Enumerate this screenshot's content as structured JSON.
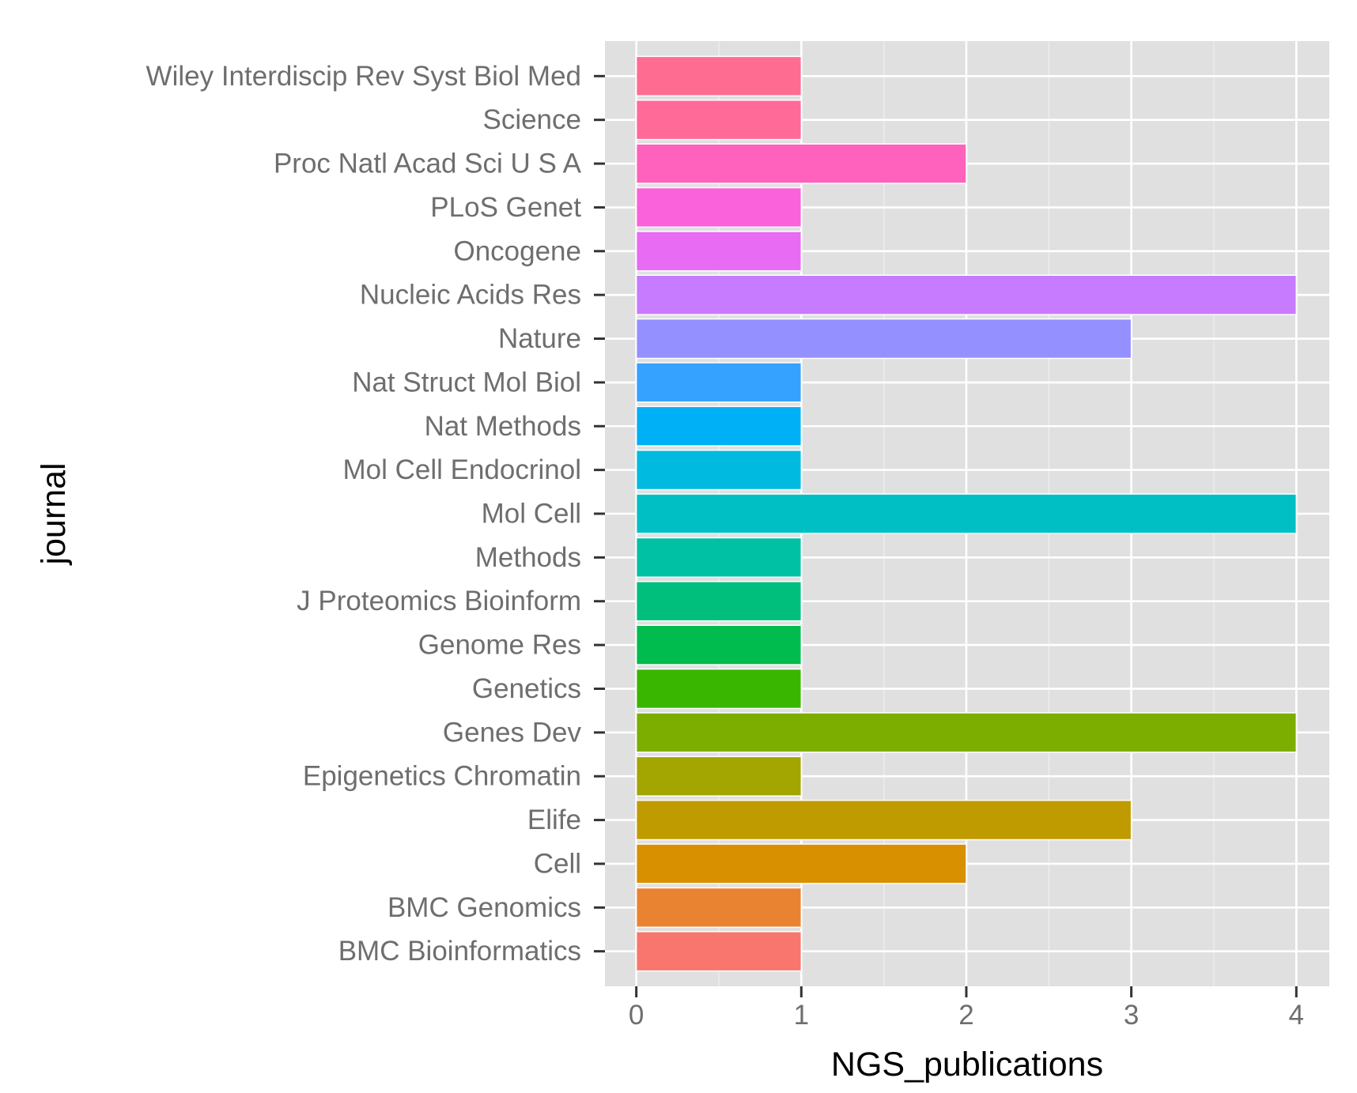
{
  "chart_data": {
    "type": "bar",
    "orientation": "horizontal",
    "xlabel": "NGS_publications",
    "ylabel": "journal",
    "xlim": [
      -0.19,
      4.2
    ],
    "x_ticks": [
      0,
      1,
      2,
      3,
      4
    ],
    "grid": true,
    "legend": "none",
    "categories": [
      "BMC Bioinformatics",
      "BMC Genomics",
      "Cell",
      "Elife",
      "Epigenetics Chromatin",
      "Genes Dev",
      "Genetics",
      "Genome Res",
      "J Proteomics Bioinform",
      "Methods",
      "Mol Cell",
      "Mol Cell Endocrinol",
      "Nat Methods",
      "Nat Struct Mol Biol",
      "Nature",
      "Nucleic Acids Res",
      "Oncogene",
      "PLoS Genet",
      "Proc Natl Acad Sci U S A",
      "Science",
      "Wiley Interdiscip Rev Syst Biol Med"
    ],
    "values": [
      1,
      1,
      2,
      3,
      1,
      4,
      1,
      1,
      1,
      1,
      4,
      1,
      1,
      1,
      3,
      4,
      1,
      1,
      2,
      1,
      1
    ],
    "colors": [
      "#F8766D",
      "#EA8331",
      "#D89000",
      "#C09B00",
      "#A3A500",
      "#7CAE00",
      "#39B600",
      "#00BB4E",
      "#00BF7D",
      "#00C1A3",
      "#00BFC4",
      "#00BAE0",
      "#00B0F6",
      "#35A2FF",
      "#9590FF",
      "#C77CFF",
      "#E76BF3",
      "#FA62DB",
      "#FF62BC",
      "#FF6A98",
      "#FF6C91"
    ],
    "panel_background": "#E0E0E0",
    "grid_color": "#FFFFFF"
  }
}
